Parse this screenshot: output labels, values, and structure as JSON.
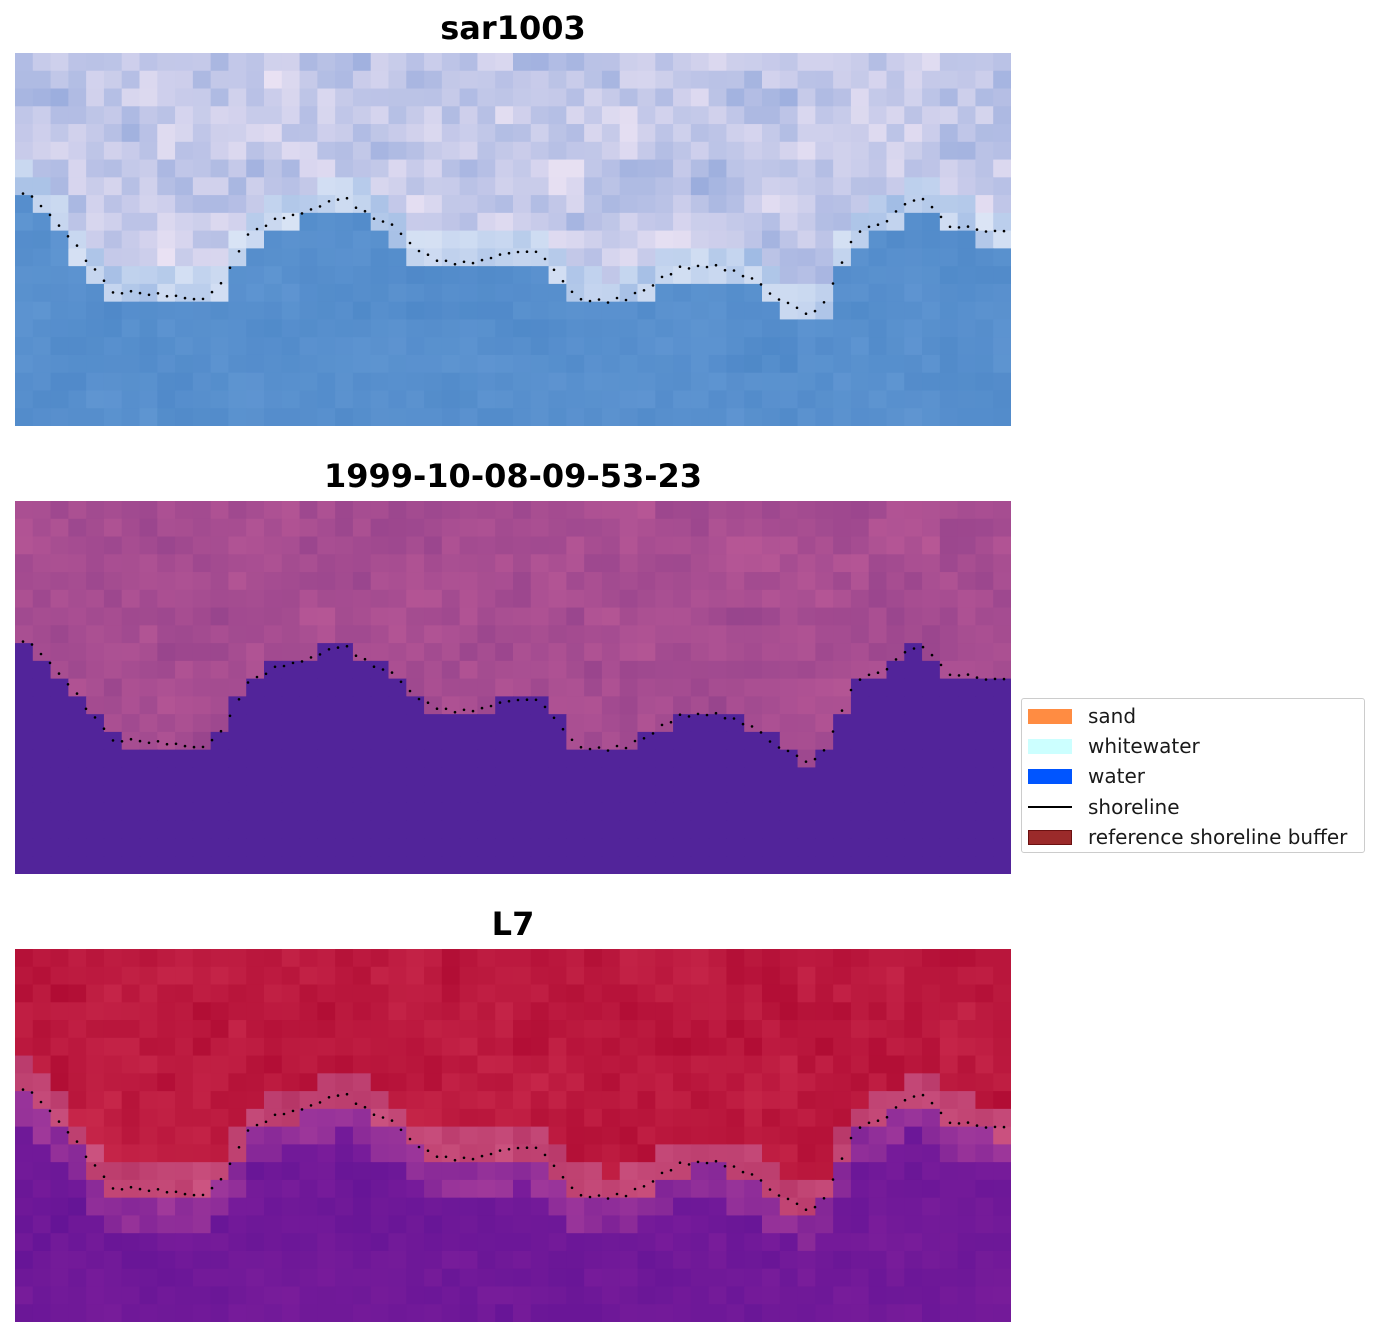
{
  "panels": [
    {
      "title": "sar1003",
      "kind": "rgb"
    },
    {
      "title": "1999-10-08-09-53-23",
      "kind": "classified"
    },
    {
      "title": "L7",
      "kind": "index"
    }
  ],
  "legend": {
    "items": [
      {
        "label": "sand",
        "color": "#ff8c42",
        "type": "patch"
      },
      {
        "label": "whitewater",
        "color": "#ccffff",
        "type": "patch"
      },
      {
        "label": "water",
        "color": "#0055ff",
        "type": "patch"
      },
      {
        "label": "shoreline",
        "color": "#000000",
        "type": "line"
      },
      {
        "label": "reference shoreline buffer",
        "color": "#9b2a2a",
        "type": "patch"
      }
    ]
  },
  "colors": {
    "water_class": "#52249a",
    "land_class": "#a85090",
    "shoreline_dots": "#000000"
  }
}
